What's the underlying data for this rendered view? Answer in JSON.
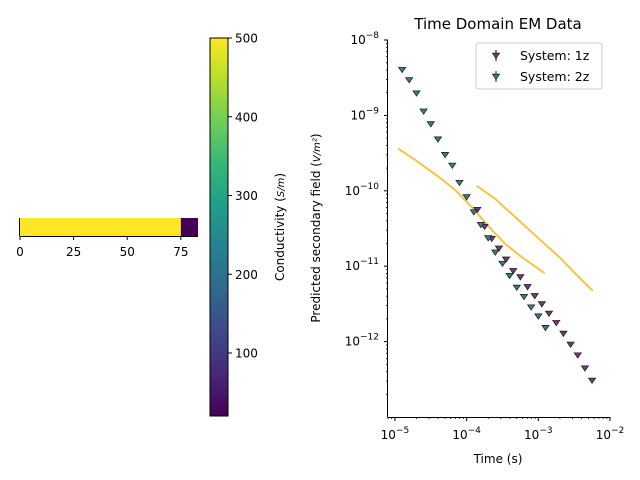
{
  "colors": {
    "conductive_layer": "#fde725",
    "basement_layer": "#440154",
    "colorbar_stops": [
      "#440154",
      "#482878",
      "#3e4989",
      "#31688e",
      "#26828e",
      "#1f9e89",
      "#35b779",
      "#6ece58",
      "#b5de2b",
      "#fde725"
    ],
    "system_1z": "#7a3b74",
    "system_2z": "#3b7f8c",
    "marker_edge": "#222222",
    "prediction_line": "#f5c542"
  },
  "chart_data": [
    {
      "type": "heatmap",
      "title": "",
      "x_ticks": [
        "0",
        "25",
        "50",
        "75"
      ],
      "xlim": [
        0,
        83
      ],
      "segments": [
        {
          "from": 0,
          "to": 75,
          "value": 500
        },
        {
          "from": 75,
          "to": 83,
          "value": 20
        }
      ],
      "colorbar": {
        "label": "Conductivity",
        "unit": "S/m",
        "range": [
          20,
          500
        ],
        "ticks": [
          "100",
          "200",
          "300",
          "400",
          "500"
        ],
        "colormap": "viridis"
      }
    },
    {
      "type": "scatter",
      "title": "Time Domain EM Data",
      "xlabel": "Time (s)",
      "ylabel": "Predicted secondary field",
      "ylabel_unit": "V/m²",
      "x_scale": "log",
      "y_scale": "log",
      "xlim": [
        8e-06,
        0.01
      ],
      "ylim": [
        1e-13,
        1e-08
      ],
      "x_ticks": [
        {
          "value": 1e-05,
          "base": "10",
          "exp": "−5"
        },
        {
          "value": 0.0001,
          "base": "10",
          "exp": "−4"
        },
        {
          "value": 0.001,
          "base": "10",
          "exp": "−3"
        },
        {
          "value": 0.01,
          "base": "10",
          "exp": "−2"
        }
      ],
      "y_ticks": [
        {
          "value": 1e-12,
          "base": "10",
          "exp": "−12"
        },
        {
          "value": 1e-11,
          "base": "10",
          "exp": "−11"
        },
        {
          "value": 1e-10,
          "base": "10",
          "exp": "−10"
        },
        {
          "value": 1e-09,
          "base": "10",
          "exp": "−9"
        },
        {
          "value": 1e-08,
          "base": "10",
          "exp": "−8"
        }
      ],
      "legend": "top-right",
      "series": [
        {
          "name": "System: 1z",
          "marker": "triangle-down",
          "points": [
            {
              "x": 0.000141,
              "y": 5.7e-11
            },
            {
              "x": 0.000178,
              "y": 3.4e-11
            },
            {
              "x": 0.000224,
              "y": 2.35e-11
            },
            {
              "x": 0.000282,
              "y": 1.75e-11
            },
            {
              "x": 0.000355,
              "y": 1.25e-11
            },
            {
              "x": 0.000447,
              "y": 8.8e-12
            },
            {
              "x": 0.000562,
              "y": 7.3e-12
            },
            {
              "x": 0.000708,
              "y": 5.4e-12
            },
            {
              "x": 0.000891,
              "y": 4.1e-12
            },
            {
              "x": 0.00112,
              "y": 3.2e-12
            },
            {
              "x": 0.00141,
              "y": 2.4e-12
            },
            {
              "x": 0.00178,
              "y": 1.8e-12
            },
            {
              "x": 0.00224,
              "y": 1.3e-12
            },
            {
              "x": 0.00282,
              "y": 9.3e-13
            },
            {
              "x": 0.00355,
              "y": 6.7e-13
            },
            {
              "x": 0.00447,
              "y": 4.5e-13
            },
            {
              "x": 0.00562,
              "y": 3.1e-13
            }
          ]
        },
        {
          "name": "System: 2z",
          "marker": "triangle-down",
          "points": [
            {
              "x": 1.26e-05,
              "y": 4.1e-09
            },
            {
              "x": 1.58e-05,
              "y": 3e-09
            },
            {
              "x": 2e-05,
              "y": 2e-09
            },
            {
              "x": 2.51e-05,
              "y": 1.15e-09
            },
            {
              "x": 3.16e-05,
              "y": 7.8e-10
            },
            {
              "x": 3.98e-05,
              "y": 4.9e-10
            },
            {
              "x": 5.01e-05,
              "y": 3.05e-10
            },
            {
              "x": 6.31e-05,
              "y": 2.2e-10
            },
            {
              "x": 7.94e-05,
              "y": 1.3e-10
            },
            {
              "x": 0.0001,
              "y": 8.4e-11
            },
            {
              "x": 0.000126,
              "y": 5.3e-11
            },
            {
              "x": 0.000158,
              "y": 3.6e-11
            },
            {
              "x": 0.0002,
              "y": 2.4e-11
            },
            {
              "x": 0.000251,
              "y": 1.55e-11
            },
            {
              "x": 0.000316,
              "y": 1.1e-11
            },
            {
              "x": 0.000398,
              "y": 7.6e-12
            },
            {
              "x": 0.000501,
              "y": 5.3e-12
            },
            {
              "x": 0.000631,
              "y": 4e-12
            },
            {
              "x": 0.000794,
              "y": 2.9e-12
            },
            {
              "x": 0.001,
              "y": 2.2e-12
            },
            {
              "x": 0.00126,
              "y": 1.55e-12
            }
          ]
        }
      ],
      "lines": [
        {
          "name": "",
          "points": [
            {
              "x": 1.12e-05,
              "y": 3.6e-10
            },
            {
              "x": 2e-05,
              "y": 2.5e-10
            },
            {
              "x": 4e-05,
              "y": 1.55e-10
            },
            {
              "x": 7e-05,
              "y": 1.02e-10
            },
            {
              "x": 0.00012,
              "y": 6e-11
            },
            {
              "x": 0.0002,
              "y": 3.4e-11
            },
            {
              "x": 0.00035,
              "y": 1.95e-11
            },
            {
              "x": 0.0006,
              "y": 1.3e-11
            },
            {
              "x": 0.0012,
              "y": 8.2e-12
            }
          ]
        },
        {
          "name": "",
          "points": [
            {
              "x": 0.000141,
              "y": 1.15e-10
            },
            {
              "x": 0.00025,
              "y": 7.8e-11
            },
            {
              "x": 0.0005,
              "y": 4.3e-11
            },
            {
              "x": 0.001,
              "y": 2.35e-11
            },
            {
              "x": 0.002,
              "y": 1.3e-11
            },
            {
              "x": 0.0035,
              "y": 7.5e-12
            },
            {
              "x": 0.00562,
              "y": 4.8e-12
            }
          ]
        }
      ]
    }
  ]
}
